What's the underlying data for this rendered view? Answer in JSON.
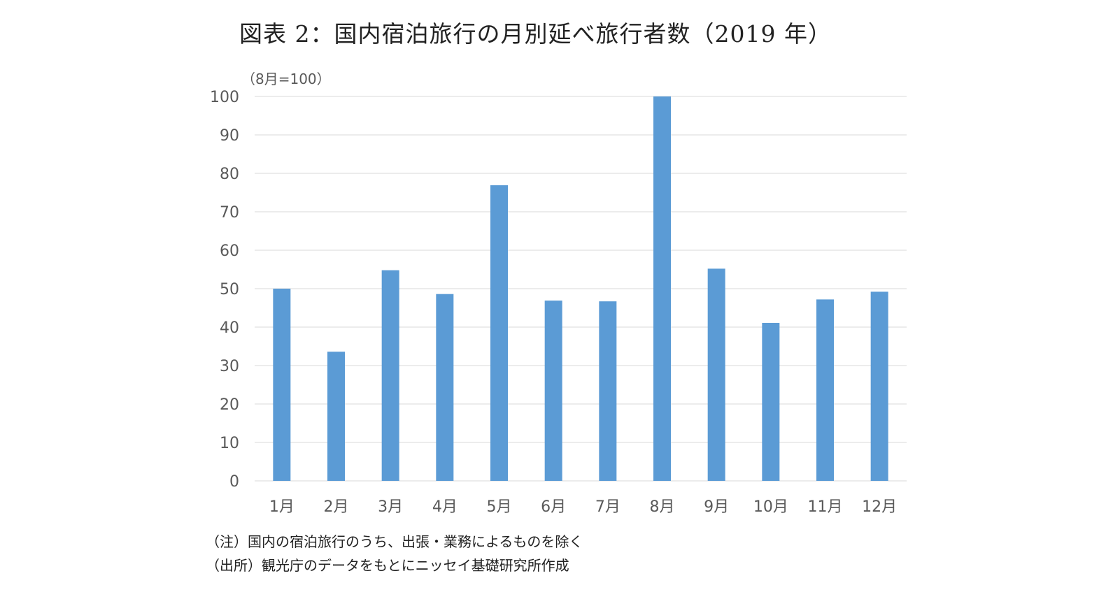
{
  "title": "図表 2：国内宿泊旅行の月別延べ旅行者数（2019 年）",
  "colors": {
    "bar": "#5b9bd5",
    "grid": "#d9d9d9",
    "axis_text": "#595959"
  },
  "notes": [
    "（注）国内の宿泊旅行のうち、出張・業務によるものを除く",
    "（出所）観光庁のデータをもとにニッセイ基礎研究所作成"
  ],
  "chart_data": {
    "type": "bar",
    "unit_label": "（8月=100）",
    "categories": [
      "1月",
      "2月",
      "3月",
      "4月",
      "5月",
      "6月",
      "7月",
      "8月",
      "9月",
      "10月",
      "11月",
      "12月"
    ],
    "values": [
      50.0,
      33.6,
      54.8,
      48.6,
      76.9,
      46.9,
      46.7,
      100.0,
      55.2,
      41.1,
      47.2,
      49.2
    ],
    "ylim": [
      0,
      100
    ],
    "yticks": [
      0,
      10,
      20,
      30,
      40,
      50,
      60,
      70,
      80,
      90,
      100
    ],
    "grid": true,
    "legend": "none"
  }
}
